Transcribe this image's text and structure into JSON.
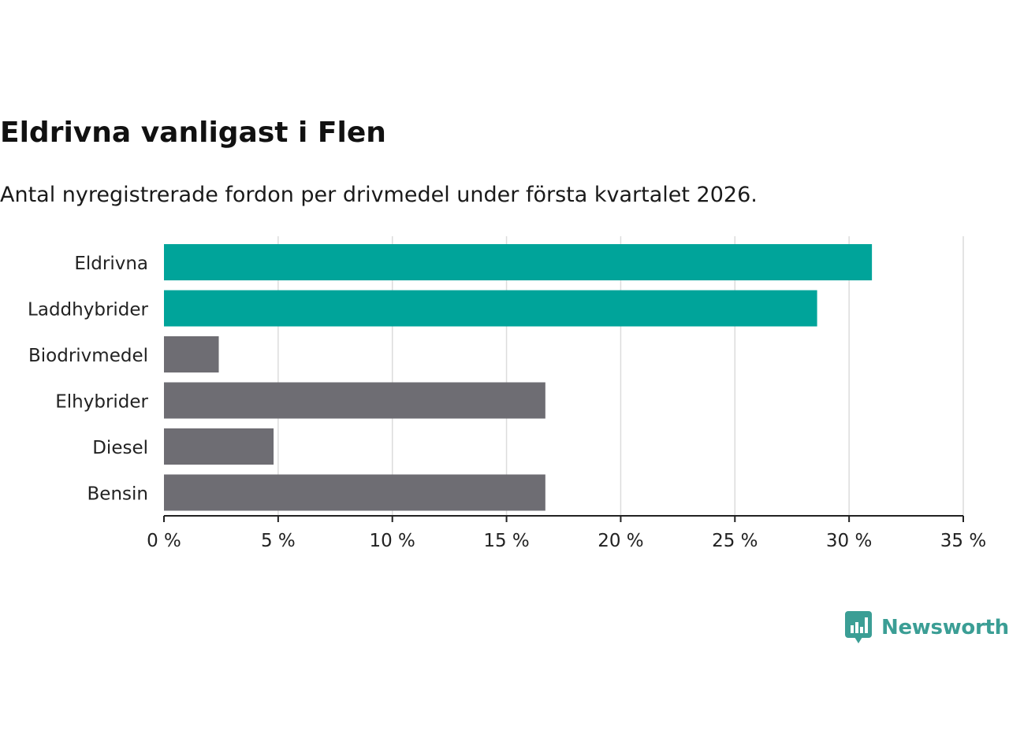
{
  "chart_data": {
    "type": "bar",
    "orientation": "horizontal",
    "title": "Eldrivna vanligast i Flen",
    "subtitle": "Antal nyregistrerade fordon per drivmedel under första kvartalet 2026.",
    "categories": [
      "Eldrivna",
      "Laddhybrider",
      "Biodrivmedel",
      "Elhybrider",
      "Diesel",
      "Bensin"
    ],
    "values": [
      31.0,
      28.6,
      2.4,
      16.7,
      4.8,
      16.7
    ],
    "highlight": [
      true,
      true,
      false,
      false,
      false,
      false
    ],
    "xlim": [
      0,
      35
    ],
    "xticks": [
      0,
      5,
      10,
      15,
      20,
      25,
      30,
      35
    ],
    "xtick_labels": [
      "0 %",
      "5 %",
      "10 %",
      "15 %",
      "20 %",
      "25 %",
      "30 %",
      "35 %"
    ],
    "grid": true,
    "colors": {
      "highlight": "#00a49a",
      "default": "#6e6d73",
      "grid": "#dcdcdc",
      "axis": "#222222"
    }
  },
  "brand": {
    "name": "Newsworthy",
    "color": "#3b9e95"
  }
}
